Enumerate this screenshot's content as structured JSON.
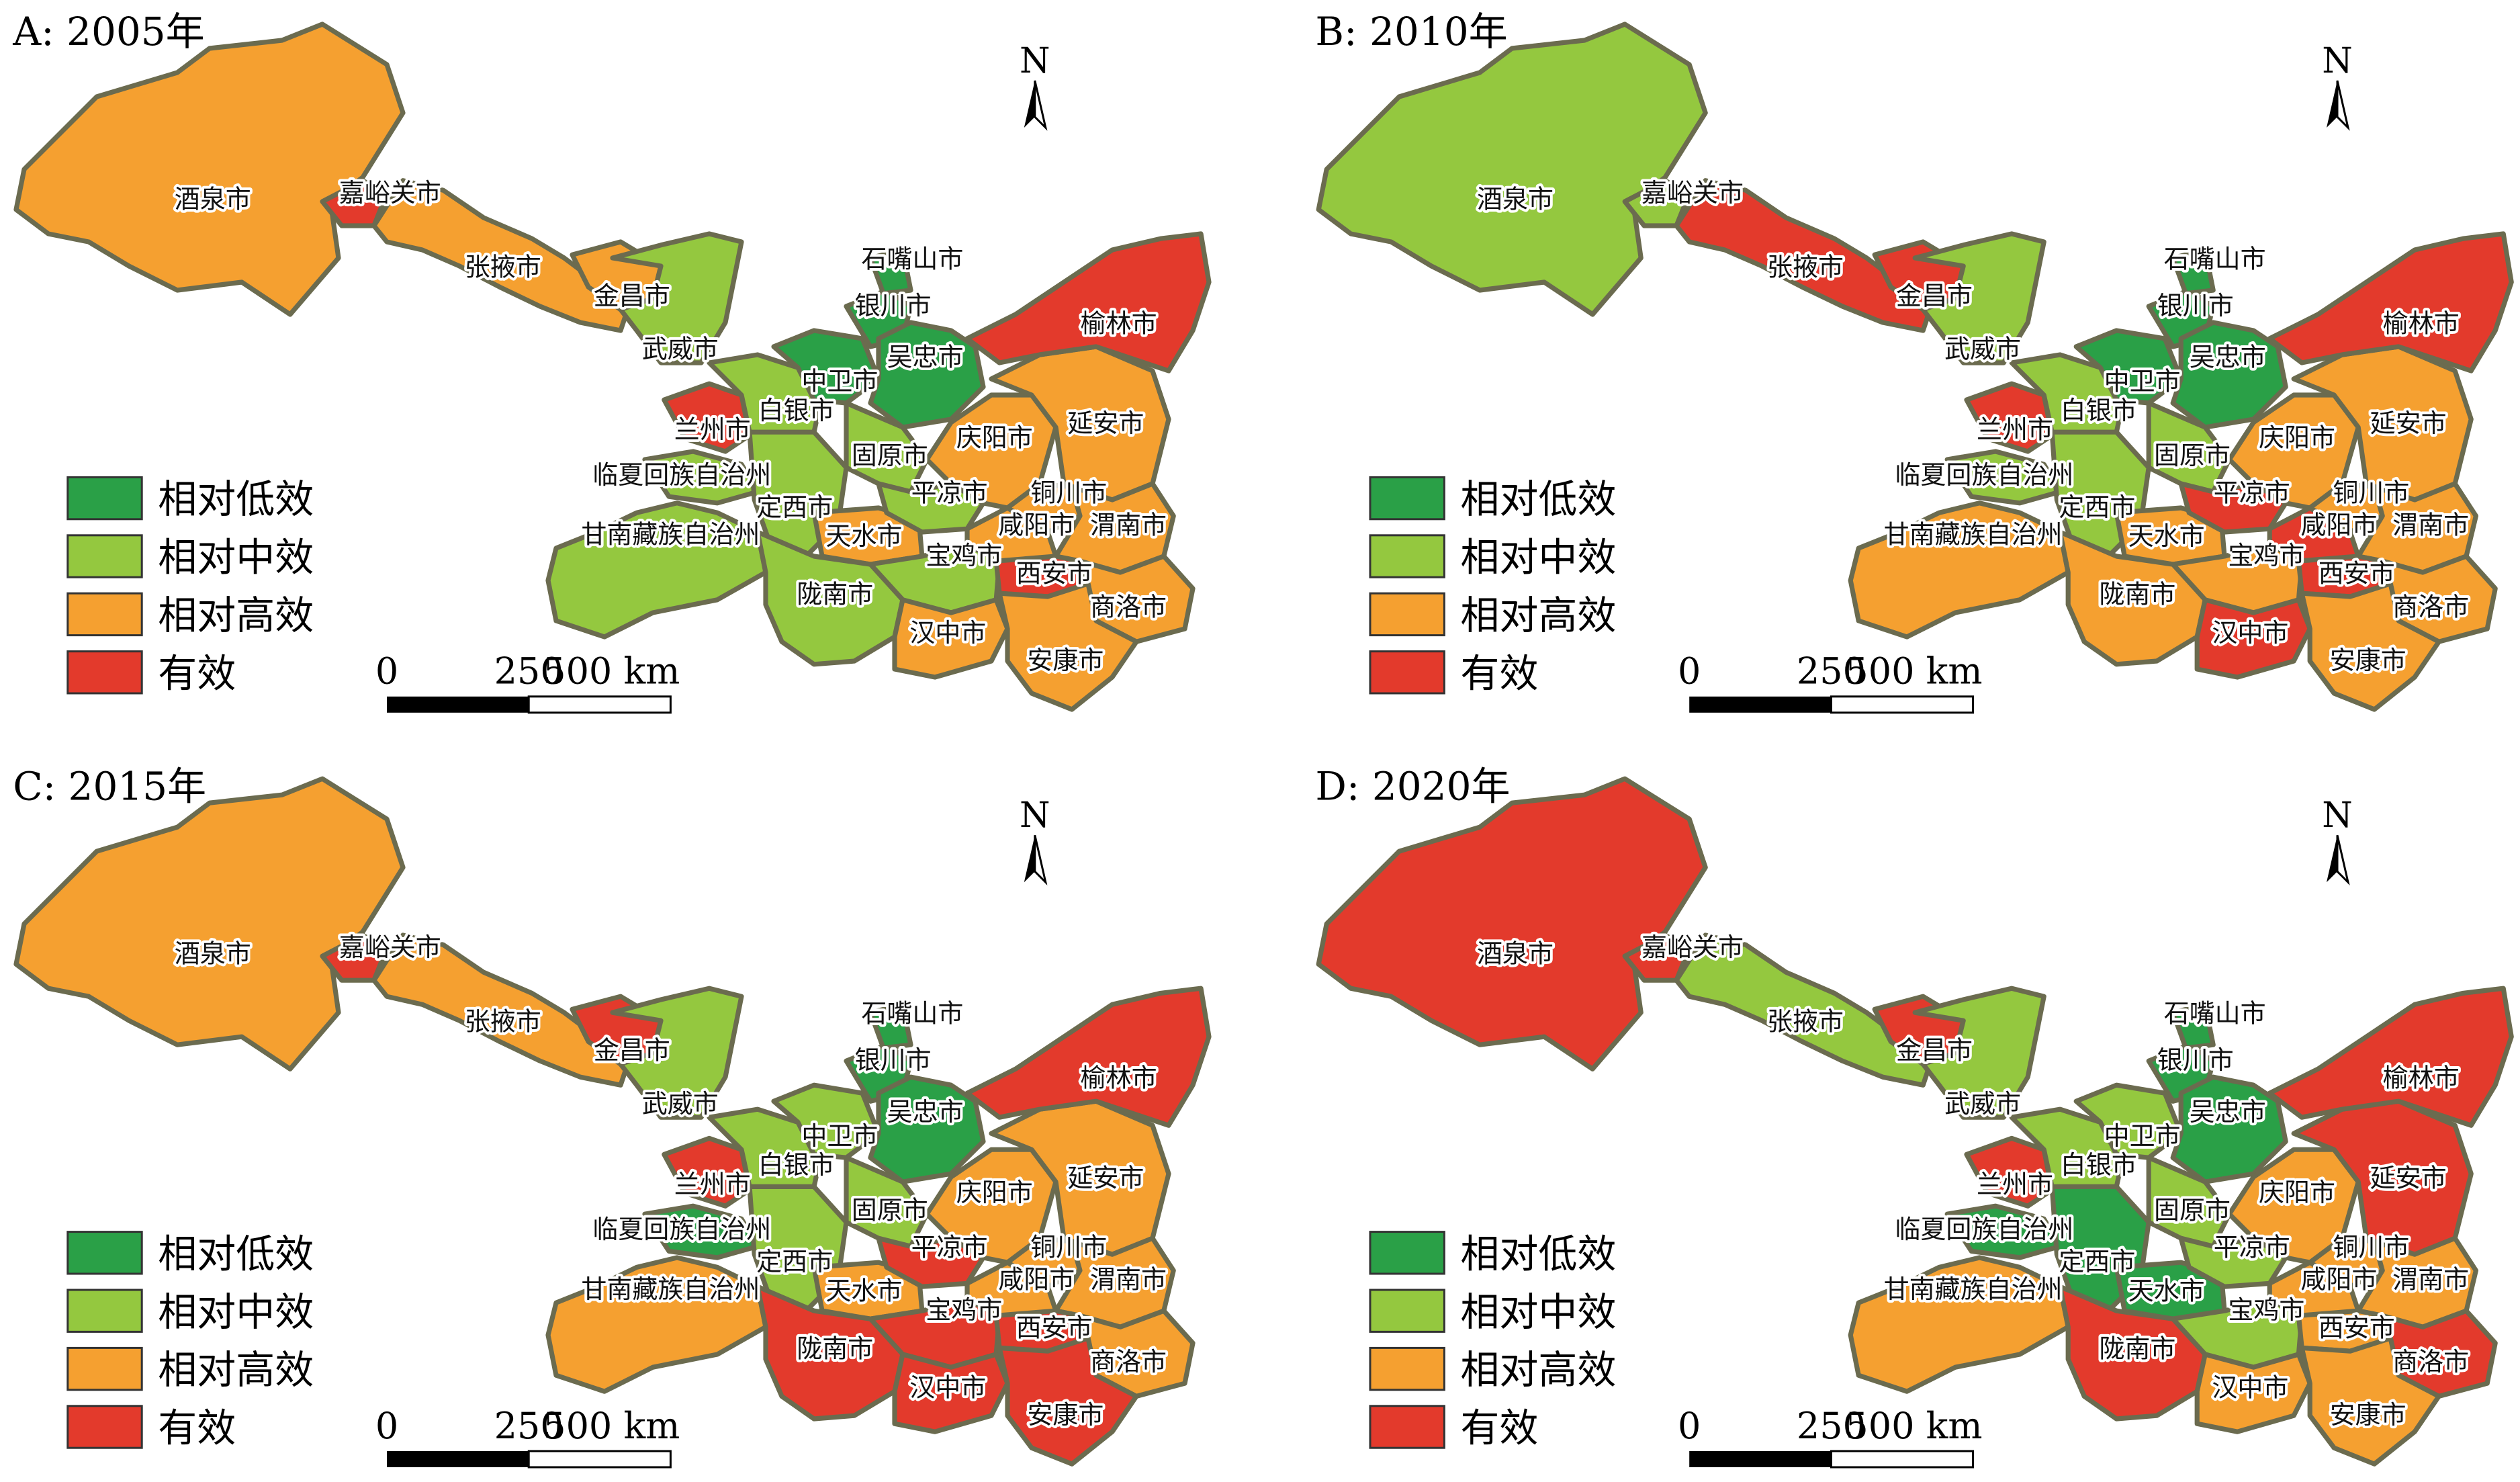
{
  "colors": {
    "relatively_low": "#2aa047",
    "relatively_medium": "#94c83f",
    "relatively_high": "#f5a030",
    "effective": "#e33a2c"
  },
  "legend": [
    {
      "key": "relatively_low",
      "label": "相对低效"
    },
    {
      "key": "relatively_medium",
      "label": "相对中效"
    },
    {
      "key": "relatively_high",
      "label": "相对高效"
    },
    {
      "key": "effective",
      "label": "有效"
    }
  ],
  "scale_bar": {
    "labels": [
      "0",
      "250",
      "500 km"
    ]
  },
  "north_arrow": {
    "label": "N"
  },
  "cities": [
    {
      "id": "jiuquan",
      "name": "酒泉市"
    },
    {
      "id": "jiayuguan",
      "name": "嘉峪关市"
    },
    {
      "id": "zhangye",
      "name": "张掖市"
    },
    {
      "id": "jinchang",
      "name": "金昌市"
    },
    {
      "id": "wuwei",
      "name": "武威市"
    },
    {
      "id": "shizuishan",
      "name": "石嘴山市"
    },
    {
      "id": "yinchuan",
      "name": "银川市"
    },
    {
      "id": "wuzhong",
      "name": "吴忠市"
    },
    {
      "id": "zhongwei",
      "name": "中卫市"
    },
    {
      "id": "baiyin",
      "name": "白银市"
    },
    {
      "id": "lanzhou",
      "name": "兰州市"
    },
    {
      "id": "linxia",
      "name": "临夏回族自治州"
    },
    {
      "id": "dingxi",
      "name": "定西市"
    },
    {
      "id": "gannan",
      "name": "甘南藏族自治州"
    },
    {
      "id": "guyuan",
      "name": "固原市"
    },
    {
      "id": "qingyang",
      "name": "庆阳市"
    },
    {
      "id": "yanan",
      "name": "延安市"
    },
    {
      "id": "yulin",
      "name": "榆林市"
    },
    {
      "id": "pingliang",
      "name": "平凉市"
    },
    {
      "id": "tongchuan",
      "name": "铜川市"
    },
    {
      "id": "tianshui",
      "name": "天水市"
    },
    {
      "id": "baoji",
      "name": "宝鸡市"
    },
    {
      "id": "xianyang",
      "name": "咸阳市"
    },
    {
      "id": "weinan",
      "name": "渭南市"
    },
    {
      "id": "xian",
      "name": "西安市"
    },
    {
      "id": "longnan",
      "name": "陇南市"
    },
    {
      "id": "hanzhong",
      "name": "汉中市"
    },
    {
      "id": "shangluo",
      "name": "商洛市"
    },
    {
      "id": "ankang",
      "name": "安康市"
    }
  ],
  "panels": [
    {
      "title": "A: 2005年",
      "classes": {
        "jiuquan": "relatively_high",
        "jiayuguan": "effective",
        "zhangye": "relatively_high",
        "jinchang": "relatively_high",
        "wuwei": "relatively_medium",
        "shizuishan": "relatively_low",
        "yinchuan": "relatively_low",
        "wuzhong": "relatively_low",
        "zhongwei": "relatively_low",
        "baiyin": "relatively_medium",
        "lanzhou": "effective",
        "linxia": "relatively_medium",
        "dingxi": "relatively_medium",
        "gannan": "relatively_medium",
        "guyuan": "relatively_medium",
        "qingyang": "relatively_high",
        "yanan": "relatively_high",
        "yulin": "effective",
        "pingliang": "relatively_medium",
        "tongchuan": "relatively_high",
        "tianshui": "relatively_high",
        "baoji": "relatively_medium",
        "xianyang": "relatively_high",
        "weinan": "relatively_high",
        "xian": "effective",
        "longnan": "relatively_medium",
        "hanzhong": "relatively_high",
        "shangluo": "relatively_high",
        "ankang": "relatively_high"
      }
    },
    {
      "title": "B: 2010年",
      "classes": {
        "jiuquan": "relatively_medium",
        "jiayuguan": "relatively_medium",
        "zhangye": "effective",
        "jinchang": "effective",
        "wuwei": "relatively_medium",
        "shizuishan": "relatively_low",
        "yinchuan": "relatively_low",
        "wuzhong": "relatively_low",
        "zhongwei": "relatively_low",
        "baiyin": "relatively_medium",
        "lanzhou": "effective",
        "linxia": "relatively_medium",
        "dingxi": "relatively_medium",
        "gannan": "relatively_high",
        "guyuan": "relatively_medium",
        "qingyang": "relatively_high",
        "yanan": "relatively_high",
        "yulin": "effective",
        "pingliang": "effective",
        "tongchuan": "relatively_high",
        "tianshui": "relatively_high",
        "baoji": "relatively_high",
        "xianyang": "effective",
        "weinan": "relatively_high",
        "xian": "effective",
        "longnan": "relatively_high",
        "hanzhong": "effective",
        "shangluo": "relatively_high",
        "ankang": "relatively_high"
      }
    },
    {
      "title": "C: 2015年",
      "classes": {
        "jiuquan": "relatively_high",
        "jiayuguan": "effective",
        "zhangye": "relatively_high",
        "jinchang": "effective",
        "wuwei": "relatively_medium",
        "shizuishan": "relatively_low",
        "yinchuan": "relatively_low",
        "wuzhong": "relatively_low",
        "zhongwei": "relatively_medium",
        "baiyin": "relatively_medium",
        "lanzhou": "effective",
        "linxia": "relatively_low",
        "dingxi": "relatively_medium",
        "gannan": "relatively_high",
        "guyuan": "relatively_medium",
        "qingyang": "relatively_high",
        "yanan": "relatively_high",
        "yulin": "effective",
        "pingliang": "effective",
        "tongchuan": "relatively_high",
        "tianshui": "relatively_high",
        "baoji": "effective",
        "xianyang": "relatively_high",
        "weinan": "relatively_high",
        "xian": "effective",
        "longnan": "effective",
        "hanzhong": "effective",
        "shangluo": "relatively_high",
        "ankang": "effective"
      }
    },
    {
      "title": "D: 2020年",
      "classes": {
        "jiuquan": "effective",
        "jiayuguan": "effective",
        "zhangye": "relatively_medium",
        "jinchang": "effective",
        "wuwei": "relatively_medium",
        "shizuishan": "relatively_low",
        "yinchuan": "relatively_low",
        "wuzhong": "relatively_low",
        "zhongwei": "relatively_medium",
        "baiyin": "relatively_medium",
        "lanzhou": "effective",
        "linxia": "relatively_low",
        "dingxi": "relatively_low",
        "gannan": "relatively_high",
        "guyuan": "relatively_medium",
        "qingyang": "relatively_high",
        "yanan": "effective",
        "yulin": "effective",
        "pingliang": "relatively_medium",
        "tongchuan": "relatively_high",
        "tianshui": "relatively_low",
        "baoji": "relatively_medium",
        "xianyang": "relatively_high",
        "weinan": "relatively_high",
        "xian": "relatively_high",
        "longnan": "effective",
        "hanzhong": "relatively_high",
        "shangluo": "effective",
        "ankang": "relatively_high"
      }
    }
  ]
}
